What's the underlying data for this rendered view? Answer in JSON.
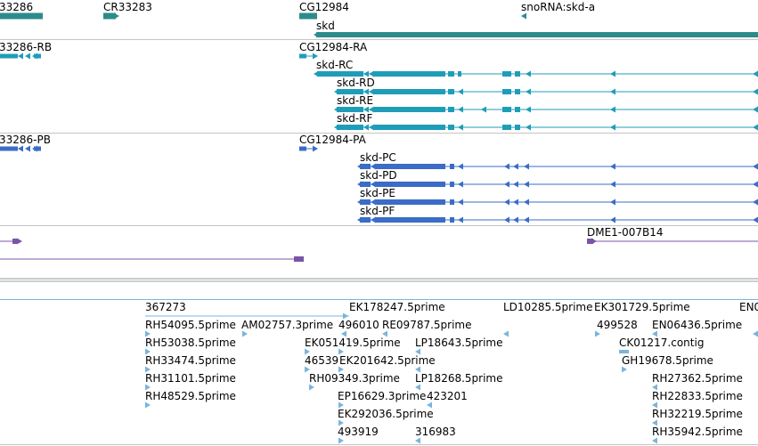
{
  "colors": {
    "gene": "#2e8b8b",
    "transcript": "#1f9db8",
    "protein": "#3b6cc6",
    "other": "#7b54a8",
    "est": "#7ab4dd",
    "divider": "#c4c4c4"
  },
  "gene_track": {
    "labels": [
      "33286",
      "CR33283",
      "CG12984",
      "snoRNA:skd-a",
      "skd"
    ]
  },
  "transcript_track": {
    "labels": [
      "33286-RB",
      "CG12984-RA",
      "skd-RC",
      "skd-RD",
      "skd-RE",
      "skd-RF"
    ]
  },
  "protein_track": {
    "labels": [
      "33286-PB",
      "CG12984-PA",
      "skd-PC",
      "skd-PD",
      "skd-PE",
      "skd-PF"
    ]
  },
  "other_track": {
    "labels": [
      "DME1-007B14"
    ]
  },
  "est_track": {
    "labels": [
      "367273",
      "EK178247.5prime",
      "LD10285.5prime",
      "EK301729.5prime",
      "EN0",
      "RH54095.5prime",
      "AM02757.3prime",
      "496010",
      "RE09787.5prime",
      "499528",
      "EN06436.5prime",
      "RH53038.5prime",
      "EK051419.5prime",
      "LP18643.5prime",
      "CK01217.contig",
      "RH33474.5prime",
      "46539",
      "EK201642.5prime",
      "GH19678.5prime",
      "RH31101.5prime",
      "RH09349.3prime",
      "LP18268.5prime",
      "RH27362.5prime",
      "RH48529.5prime",
      "EP16629.3prime",
      "423201",
      "RH22833.5prime",
      "EK292036.5prime",
      "RH32219.5prime",
      "493919",
      "316983",
      "RH35942.5prime"
    ]
  }
}
